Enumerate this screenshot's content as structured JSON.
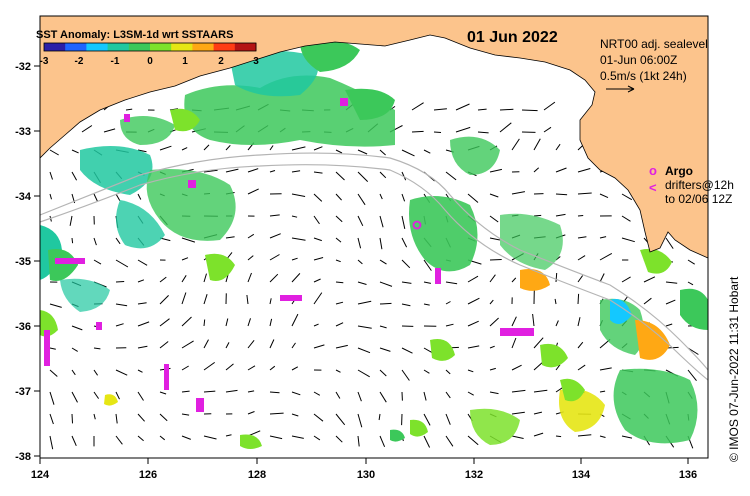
{
  "map": {
    "title": "01 Jun 2022",
    "colorbar": {
      "title": "SST Anomaly: L3SM-1d wrt SSTAARS",
      "ticks": [
        "-3",
        "-2",
        "-1",
        "0",
        "1",
        "2",
        "3"
      ],
      "colors": [
        "#2b1fa8",
        "#1f64ff",
        "#14c8ff",
        "#20c8a0",
        "#3cc85a",
        "#7de22b",
        "#e6e614",
        "#ffa814",
        "#ff3c14",
        "#b41414"
      ]
    },
    "info": {
      "line1": "NRT00 adj. sealevel",
      "line2": "01-Jun 06:00Z",
      "line3": "0.5m/s (1kt 24h)"
    },
    "legend": {
      "argo_label": "Argo",
      "argo_symbol": "o",
      "drifters_label": "drifters@12h",
      "drifters_symbol": "<",
      "drifters_line2": "to 02/06 12Z"
    },
    "credit": "© IMOS 07-Jun-2022 11:31 Hobart",
    "x_axis_labels": [
      "124",
      "126",
      "128",
      "130",
      "132",
      "134",
      "136"
    ],
    "y_axis_labels": [
      "-32",
      "-33",
      "-34",
      "-35",
      "-36",
      "-37",
      "-38"
    ],
    "colors": {
      "land": "#fcc48c",
      "argo": "#e020e0",
      "drifter": "#e020e0",
      "bathymetry": "#b4b4b4",
      "vectors": "#000000"
    }
  }
}
